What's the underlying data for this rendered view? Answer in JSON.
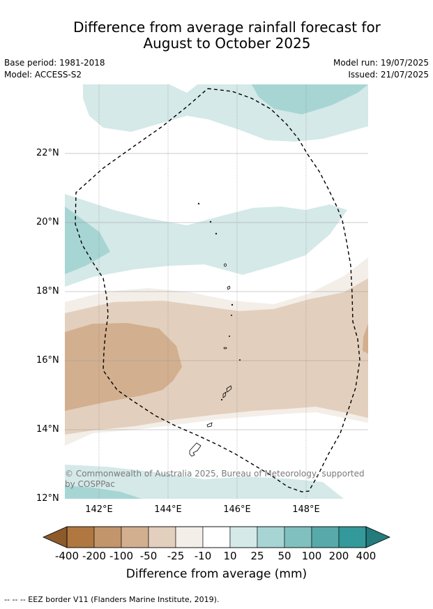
{
  "title_line1": "Difference from average rainfall forecast for",
  "title_line2": "August to October 2025",
  "meta": {
    "base_period": "Base period: 1981-2018",
    "model": "Model: ACCESS-S2",
    "model_run": "Model run: 19/07/2025",
    "issued": "Issued: 21/07/2025"
  },
  "map": {
    "lat_ticks": [
      "22°N",
      "20°N",
      "18°N",
      "16°N",
      "14°N",
      "12°N"
    ],
    "lon_ticks": [
      "142°E",
      "144°E",
      "146°E",
      "148°E"
    ],
    "copyright": "© Commonwealth of Australia 2025, Bureau of Meteorology, supported by COSPPac",
    "eez_style": "dashed black line"
  },
  "legend": {
    "title": "Difference from average (mm)",
    "labels": [
      "-400",
      "-200",
      "-100",
      "-50",
      "-25",
      "-10",
      "10",
      "25",
      "50",
      "100",
      "200",
      "400"
    ],
    "colors": [
      "#8c5a2b",
      "#b07840",
      "#c2956a",
      "#d2af8f",
      "#e3cfbd",
      "#f3eee8",
      "#ffffff",
      "#d4e9e8",
      "#a6d5d4",
      "#80c0bf",
      "#58a9aa",
      "#34999a",
      "#237b7c"
    ]
  },
  "footnote": "-- -- -- EEZ border V11 (Flanders Marine Institute, 2019)."
}
